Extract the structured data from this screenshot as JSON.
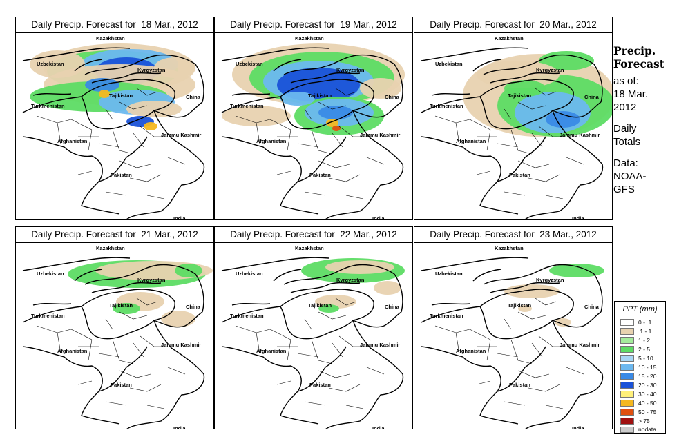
{
  "panels": [
    {
      "title": "Daily Precip. Forecast for  18 Mar., 2012",
      "precip_level": "heavy-north"
    },
    {
      "title": "Daily Precip. Forecast for  19 Mar., 2012",
      "precip_level": "heavy-northeast"
    },
    {
      "title": "Daily Precip. Forecast for  20 Mar., 2012",
      "precip_level": "moderate-east"
    },
    {
      "title": "Daily Precip. Forecast for  21 Mar., 2012",
      "precip_level": "light"
    },
    {
      "title": "Daily Precip. Forecast for  22 Mar., 2012",
      "precip_level": "light"
    },
    {
      "title": "Daily Precip. Forecast for  23 Mar., 2012",
      "precip_level": "very-light"
    }
  ],
  "map_labels": {
    "kazakhstan": "Kazakhstan",
    "uzbekistan": "Uzbekistan",
    "kyrgyzstan": "Kyrgyzstan",
    "tajikistan": "Tajikistan",
    "turkmenistan": "Turkmenistan",
    "china": "China",
    "afghanistan": "Afghanistan",
    "jammu_kashmir": "Jammu Kashmir",
    "pakistan": "Pakistan",
    "india": "India"
  },
  "sidebar": {
    "heading_line1": "Precip.",
    "heading_line2": "Forecast",
    "as_of_line1": "as of:",
    "as_of_line2": "18 Mar.",
    "as_of_line3": "2012",
    "daily_line1": "Daily",
    "daily_line2": "Totals",
    "data_line1": "Data:",
    "data_line2": "NOAA-",
    "data_line3": "GFS"
  },
  "legend": {
    "title": "PPT (mm)",
    "items": [
      {
        "label": "0 - .1",
        "color": "#ffffff"
      },
      {
        "label": ".1 - 1",
        "color": "#e8d2b0"
      },
      {
        "label": "1 - 2",
        "color": "#a4ec9c"
      },
      {
        "label": "2 - 5",
        "color": "#5ddc64"
      },
      {
        "label": "5 - 10",
        "color": "#a8d6f4"
      },
      {
        "label": "10 - 15",
        "color": "#6cb8ef"
      },
      {
        "label": "15 - 20",
        "color": "#3a8ae6"
      },
      {
        "label": "20 - 30",
        "color": "#1a52d8"
      },
      {
        "label": "30 - 40",
        "color": "#fff07a"
      },
      {
        "label": "40 - 50",
        "color": "#f5b820"
      },
      {
        "label": "50 - 75",
        "color": "#e05010"
      },
      {
        "label": "> 75",
        "color": "#a01010"
      },
      {
        "label": "nodata",
        "color": "#cccccc"
      }
    ]
  }
}
